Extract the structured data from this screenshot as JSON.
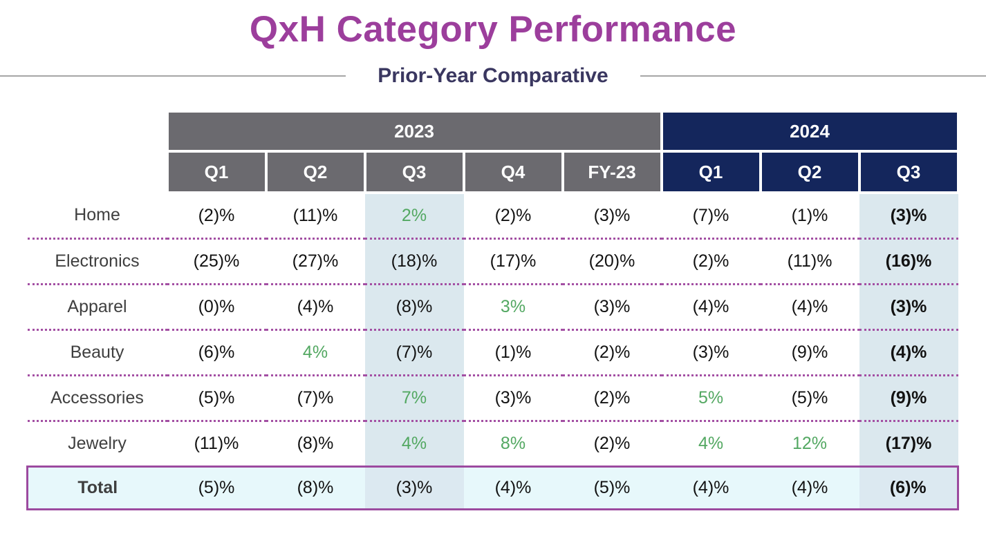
{
  "title": "QxH Category Performance",
  "subtitle": "Prior-Year Comparative",
  "colors": {
    "title_text": "#9c3e9c",
    "subtitle_text": "#3a3760",
    "gray_header_bg": "#6b6a6f",
    "navy_header_bg": "#14265c",
    "header_text": "#ffffff",
    "positive_value_green": "#53a862",
    "q3_column_highlight": "#dbe8ee",
    "total_row_bg": "#e7f8fb",
    "total_row_border": "#9c4a9f",
    "row_separator_dots": "#a34fa3",
    "subtitle_rule": "#a6a6a6"
  },
  "chart_data": {
    "type": "table",
    "title": "QxH Category Performance",
    "subtitle": "Prior-Year Comparative",
    "year_groups": [
      {
        "label": "2023",
        "span": 5
      },
      {
        "label": "2024",
        "span": 3
      }
    ],
    "quarter_headers": [
      "Q1",
      "Q2",
      "Q3",
      "Q4",
      "FY-23",
      "Q1",
      "Q2",
      "Q3"
    ],
    "highlighted_columns": [
      "Q3 2023",
      "Q3 2024"
    ],
    "rows": [
      {
        "label": "Home",
        "values": [
          "(2)%",
          "(11)%",
          "2%",
          "(2)%",
          "(3)%",
          "(7)%",
          "(1)%",
          "(3)%"
        ],
        "green_indices": [
          2
        ]
      },
      {
        "label": "Electronics",
        "values": [
          "(25)%",
          "(27)%",
          "(18)%",
          "(17)%",
          "(20)%",
          "(2)%",
          "(11)%",
          "(16)%"
        ],
        "green_indices": []
      },
      {
        "label": "Apparel",
        "values": [
          "(0)%",
          "(4)%",
          "(8)%",
          "3%",
          "(3)%",
          "(4)%",
          "(4)%",
          "(3)%"
        ],
        "green_indices": [
          3
        ]
      },
      {
        "label": "Beauty",
        "values": [
          "(6)%",
          "4%",
          "(7)%",
          "(1)%",
          "(2)%",
          "(3)%",
          "(9)%",
          "(4)%"
        ],
        "green_indices": [
          1
        ]
      },
      {
        "label": "Accessories",
        "values": [
          "(5)%",
          "(7)%",
          "7%",
          "(3)%",
          "(2)%",
          "5%",
          "(5)%",
          "(9)%"
        ],
        "green_indices": [
          2,
          5
        ]
      },
      {
        "label": "Jewelry",
        "values": [
          "(11)%",
          "(8)%",
          "4%",
          "8%",
          "(2)%",
          "4%",
          "12%",
          "(17)%"
        ],
        "green_indices": [
          2,
          3,
          5,
          6
        ]
      }
    ],
    "total_row": {
      "label": "Total",
      "values": [
        "(5)%",
        "(8)%",
        "(3)%",
        "(4)%",
        "(5)%",
        "(4)%",
        "(4)%",
        "(6)%"
      ]
    }
  }
}
